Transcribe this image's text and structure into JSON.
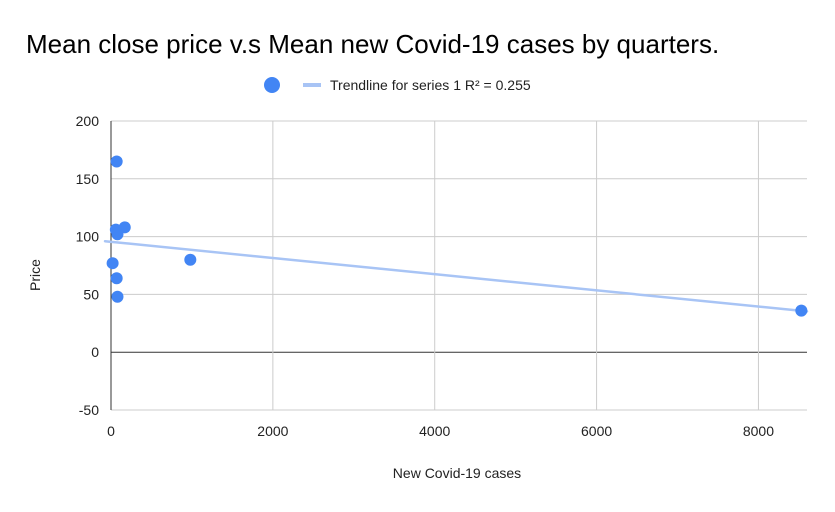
{
  "chart_data": {
    "type": "scatter",
    "title": "Mean close price v.s Mean new Covid-19 cases by quarters.",
    "xlabel": "New Covid-19 cases",
    "ylabel": "Price",
    "xlim": [
      0,
      8600
    ],
    "ylim": [
      -50,
      200
    ],
    "x_ticks": [
      0,
      2000,
      4000,
      6000,
      8000
    ],
    "y_ticks": [
      -50,
      0,
      50,
      100,
      150,
      200
    ],
    "x_tick_labels": [
      "0",
      "2000",
      "4000",
      "6000",
      "8000"
    ],
    "y_tick_labels": [
      "-50",
      "0",
      "50",
      "100",
      "150",
      "200"
    ],
    "grid": true,
    "legend_position": "top",
    "point_color": "#4285F4",
    "trendline_color": "#A8C4F5",
    "series": [
      {
        "name": "",
        "points": [
          {
            "x": 70,
            "y": 165
          },
          {
            "x": 60,
            "y": 106
          },
          {
            "x": 170,
            "y": 108
          },
          {
            "x": 80,
            "y": 102
          },
          {
            "x": 20,
            "y": 77
          },
          {
            "x": 70,
            "y": 64
          },
          {
            "x": 80,
            "y": 48
          },
          {
            "x": 980,
            "y": 80
          },
          {
            "x": 8530,
            "y": 36
          }
        ]
      }
    ],
    "trendline": {
      "label": "Trendline for series 1 R² = 0.255",
      "x_start": 0,
      "y_start": 95.5,
      "x_end": 8600,
      "y_end": 35.3
    }
  }
}
